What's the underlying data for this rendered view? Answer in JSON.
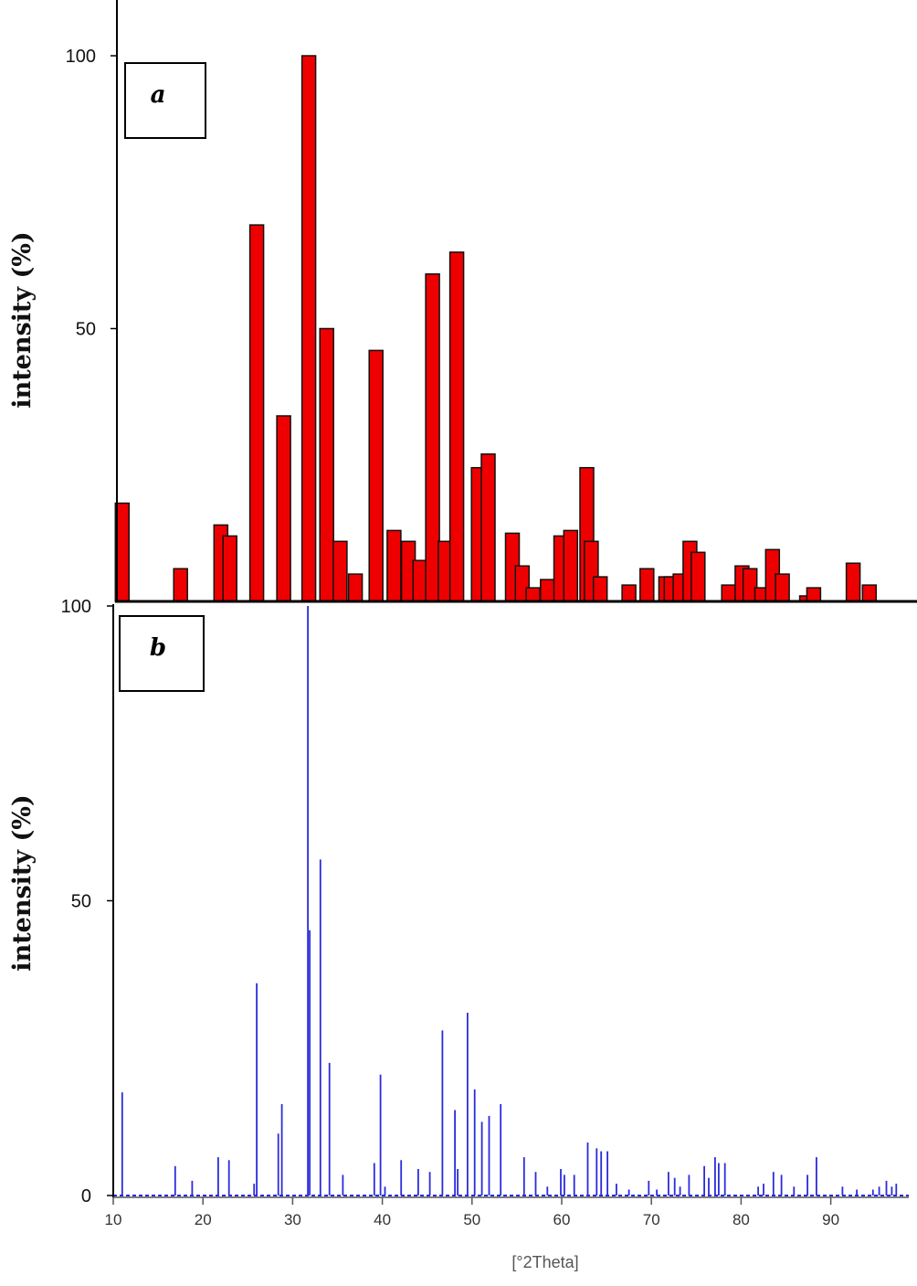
{
  "chart_data": [
    {
      "type": "bar",
      "panel_label": "a",
      "ylabel": "intensity (%)",
      "xlabel": "",
      "x_range": [
        10,
        97.5
      ],
      "ylim": [
        0,
        100
      ],
      "yticks": [
        50,
        100
      ],
      "colors": {
        "bar_fill": "#ee0000",
        "bar_stroke": "#111111"
      },
      "x": [
        11,
        17.5,
        22,
        23,
        26,
        29,
        31.8,
        33.8,
        35.3,
        37,
        39.3,
        41.3,
        42.9,
        44.2,
        45.6,
        47,
        48.3,
        50.7,
        51.8,
        54.5,
        55.6,
        56.8,
        58.4,
        59.9,
        61,
        62.8,
        63.3,
        64.3,
        67.5,
        69.5,
        71.6,
        72.2,
        73.2,
        74.3,
        75.2,
        78.6,
        80.1,
        81,
        82.3,
        83.5,
        84.6,
        87.3,
        88.1,
        92.5,
        94.3
      ],
      "values": [
        18,
        6,
        14,
        12,
        69,
        34,
        100,
        50,
        11,
        5,
        46,
        13,
        11,
        7.5,
        60,
        11,
        64,
        24.5,
        27,
        12.5,
        6.5,
        2.5,
        4,
        12,
        13,
        24.5,
        11,
        4.5,
        3,
        6,
        4.5,
        4.5,
        5,
        11,
        9,
        3,
        6.5,
        6,
        2.5,
        9.5,
        5,
        1,
        2.5,
        7,
        3
      ]
    },
    {
      "type": "bar",
      "panel_label": "b",
      "ylabel": "intensity (%)",
      "xlabel": "[°2Theta]",
      "x_range": [
        10,
        97.5
      ],
      "ylim": [
        0,
        100
      ],
      "yticks": [
        0,
        50,
        100
      ],
      "xticks": [
        10,
        20,
        30,
        40,
        50,
        60,
        70,
        80,
        90
      ],
      "colors": {
        "line": "#2b2bdd"
      },
      "x": [
        11,
        16.9,
        18.8,
        21.7,
        22.9,
        25.7,
        26,
        28.4,
        28.8,
        31.7,
        31.9,
        33.1,
        34.1,
        35.6,
        39.1,
        39.8,
        40.3,
        42.1,
        44,
        45.3,
        46.7,
        48.1,
        48.4,
        49.5,
        50.3,
        51.1,
        51.9,
        53.2,
        55.8,
        57.1,
        58.4,
        59.9,
        60.3,
        61.4,
        62.9,
        63.9,
        64.4,
        65.1,
        66.1,
        67.5,
        69.7,
        70.6,
        71.9,
        72.6,
        73.2,
        74.2,
        75.9,
        76.4,
        77.1,
        77.5,
        78.2,
        81.9,
        82.5,
        83.6,
        84.5,
        85.9,
        87.4,
        88.4,
        91.3,
        92.9,
        94.7,
        95.4,
        96.2,
        96.8,
        97.3
      ],
      "values": [
        17.5,
        5,
        2.5,
        6.5,
        6,
        2,
        36,
        10.5,
        15.5,
        100,
        45,
        57,
        22.5,
        3.5,
        5.5,
        20.5,
        1.5,
        6,
        4.5,
        4,
        28,
        14.5,
        4.5,
        31,
        18,
        12.5,
        13.5,
        15.5,
        6.5,
        4,
        1.5,
        4.5,
        3.5,
        3.5,
        9,
        8,
        7.5,
        7.5,
        2,
        1,
        2.5,
        1,
        4,
        3,
        1.5,
        3.5,
        5,
        3,
        6.5,
        5.5,
        5.5,
        1.5,
        2,
        4,
        3.5,
        1.5,
        3.5,
        6.5,
        1.5,
        1,
        1,
        1.5,
        2.5,
        1.5,
        2
      ]
    }
  ]
}
